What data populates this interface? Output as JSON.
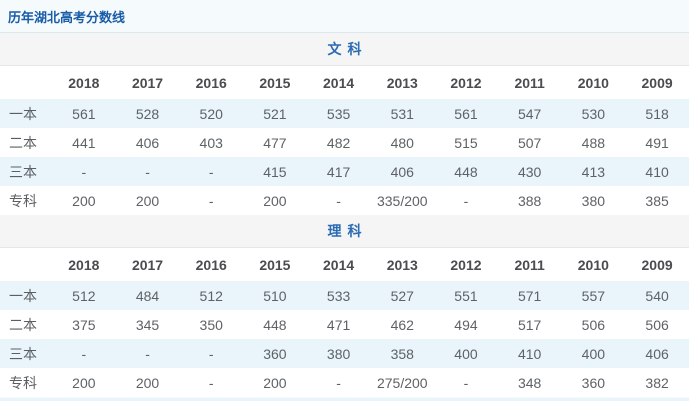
{
  "page": {
    "title": "历年湖北高考分数线"
  },
  "colors": {
    "title_blue": "#1a5ca8",
    "section_blue": "#2b6cb3",
    "stripe_row_bg": "#e9f5fb",
    "section_band_bg": "#f5f5f6",
    "title_bar_bg": "#f5fbfc",
    "header_text": "#4c4c50",
    "cell_text": "#5e6266"
  },
  "years": [
    "2018",
    "2017",
    "2016",
    "2015",
    "2014",
    "2013",
    "2012",
    "2011",
    "2010",
    "2009"
  ],
  "sections": [
    {
      "id": "wenke",
      "name": "文科",
      "rows": [
        {
          "label": "一本",
          "values": [
            "561",
            "528",
            "520",
            "521",
            "535",
            "531",
            "561",
            "547",
            "530",
            "518"
          ]
        },
        {
          "label": "二本",
          "values": [
            "441",
            "406",
            "403",
            "477",
            "482",
            "480",
            "515",
            "507",
            "488",
            "491"
          ]
        },
        {
          "label": "三本",
          "values": [
            "-",
            "-",
            "-",
            "415",
            "417",
            "406",
            "448",
            "430",
            "413",
            "410"
          ]
        },
        {
          "label": "专科",
          "values": [
            "200",
            "200",
            "-",
            "200",
            "-",
            "335/200",
            "-",
            "388",
            "380",
            "385"
          ]
        }
      ]
    },
    {
      "id": "like",
      "name": "理科",
      "rows": [
        {
          "label": "一本",
          "values": [
            "512",
            "484",
            "512",
            "510",
            "533",
            "527",
            "551",
            "571",
            "557",
            "540"
          ]
        },
        {
          "label": "二本",
          "values": [
            "375",
            "345",
            "350",
            "448",
            "471",
            "462",
            "494",
            "517",
            "506",
            "506"
          ]
        },
        {
          "label": "三本",
          "values": [
            "-",
            "-",
            "-",
            "360",
            "380",
            "358",
            "400",
            "410",
            "400",
            "406"
          ]
        },
        {
          "label": "专科",
          "values": [
            "200",
            "200",
            "-",
            "200",
            "-",
            "275/200",
            "-",
            "348",
            "360",
            "382"
          ]
        }
      ]
    }
  ]
}
